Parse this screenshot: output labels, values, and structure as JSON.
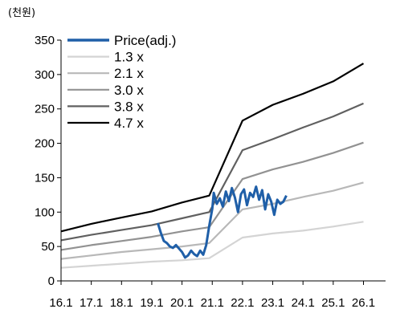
{
  "chart_data": {
    "type": "line",
    "unit_label": "(천원)",
    "ylim": [
      0,
      350
    ],
    "yticks": [
      0,
      50,
      100,
      150,
      200,
      250,
      300,
      350
    ],
    "xlim": [
      2016.0,
      2026.0
    ],
    "x_tick_labels": [
      "16.1",
      "17.1",
      "18.1",
      "19.1",
      "20.1",
      "21.1",
      "22.1",
      "23.1",
      "24.1",
      "25.1",
      "26.1"
    ],
    "grid": false,
    "legend_position": "top-left",
    "series": [
      {
        "name": "Price(adj.)",
        "color": "#1f5fa8",
        "points": [
          [
            2019.2,
            84
          ],
          [
            2019.3,
            70
          ],
          [
            2019.4,
            58
          ],
          [
            2019.5,
            55
          ],
          [
            2019.6,
            50
          ],
          [
            2019.7,
            48
          ],
          [
            2019.8,
            52
          ],
          [
            2019.9,
            47
          ],
          [
            2020.0,
            42
          ],
          [
            2020.1,
            34
          ],
          [
            2020.2,
            37
          ],
          [
            2020.3,
            44
          ],
          [
            2020.4,
            39
          ],
          [
            2020.5,
            36
          ],
          [
            2020.6,
            44
          ],
          [
            2020.7,
            38
          ],
          [
            2020.8,
            52
          ],
          [
            2020.9,
            80
          ],
          [
            2021.0,
            105
          ],
          [
            2021.05,
            128
          ],
          [
            2021.15,
            112
          ],
          [
            2021.25,
            120
          ],
          [
            2021.35,
            108
          ],
          [
            2021.45,
            130
          ],
          [
            2021.55,
            116
          ],
          [
            2021.65,
            135
          ],
          [
            2021.75,
            121
          ],
          [
            2021.85,
            100
          ],
          [
            2021.95,
            126
          ],
          [
            2022.05,
            133
          ],
          [
            2022.15,
            110
          ],
          [
            2022.25,
            128
          ],
          [
            2022.35,
            122
          ],
          [
            2022.45,
            137
          ],
          [
            2022.55,
            118
          ],
          [
            2022.65,
            132
          ],
          [
            2022.75,
            104
          ],
          [
            2022.85,
            126
          ],
          [
            2022.95,
            115
          ],
          [
            2023.05,
            96
          ],
          [
            2023.15,
            118
          ],
          [
            2023.25,
            112
          ],
          [
            2023.35,
            115
          ],
          [
            2023.45,
            124
          ]
        ]
      },
      {
        "name": "1.3 x",
        "color": "#d4d4d4",
        "points": [
          [
            2016.0,
            19
          ],
          [
            2017.0,
            22
          ],
          [
            2018.0,
            25
          ],
          [
            2019.0,
            28
          ],
          [
            2020.0,
            30
          ],
          [
            2020.9,
            33
          ],
          [
            2022.0,
            63
          ],
          [
            2023.0,
            69
          ],
          [
            2024.0,
            73
          ],
          [
            2025.0,
            79
          ],
          [
            2026.0,
            86
          ]
        ]
      },
      {
        "name": "2.1 x",
        "color": "#b8b8b8",
        "points": [
          [
            2016.0,
            32
          ],
          [
            2017.0,
            37
          ],
          [
            2018.0,
            42
          ],
          [
            2019.0,
            46
          ],
          [
            2020.0,
            50
          ],
          [
            2020.9,
            55
          ],
          [
            2022.0,
            104
          ],
          [
            2023.0,
            112
          ],
          [
            2024.0,
            122
          ],
          [
            2025.0,
            131
          ],
          [
            2026.0,
            143
          ]
        ]
      },
      {
        "name": "3.0 x",
        "color": "#929292",
        "points": [
          [
            2016.0,
            45
          ],
          [
            2017.0,
            52
          ],
          [
            2018.0,
            58
          ],
          [
            2019.0,
            64
          ],
          [
            2020.0,
            72
          ],
          [
            2020.9,
            78
          ],
          [
            2022.0,
            148
          ],
          [
            2023.0,
            162
          ],
          [
            2024.0,
            173
          ],
          [
            2025.0,
            186
          ],
          [
            2026.0,
            201
          ]
        ]
      },
      {
        "name": "3.8 x",
        "color": "#606060",
        "points": [
          [
            2016.0,
            59
          ],
          [
            2017.0,
            67
          ],
          [
            2018.0,
            74
          ],
          [
            2019.0,
            81
          ],
          [
            2020.0,
            91
          ],
          [
            2020.9,
            100
          ],
          [
            2022.0,
            190
          ],
          [
            2023.0,
            206
          ],
          [
            2024.0,
            223
          ],
          [
            2025.0,
            239
          ],
          [
            2026.0,
            258
          ]
        ]
      },
      {
        "name": "4.7 x",
        "color": "#000000",
        "points": [
          [
            2016.0,
            72
          ],
          [
            2017.0,
            83
          ],
          [
            2018.0,
            92
          ],
          [
            2019.0,
            101
          ],
          [
            2020.0,
            114
          ],
          [
            2020.9,
            124
          ],
          [
            2022.0,
            233
          ],
          [
            2023.0,
            256
          ],
          [
            2024.0,
            272
          ],
          [
            2025.0,
            290
          ],
          [
            2026.0,
            316
          ]
        ]
      }
    ]
  }
}
